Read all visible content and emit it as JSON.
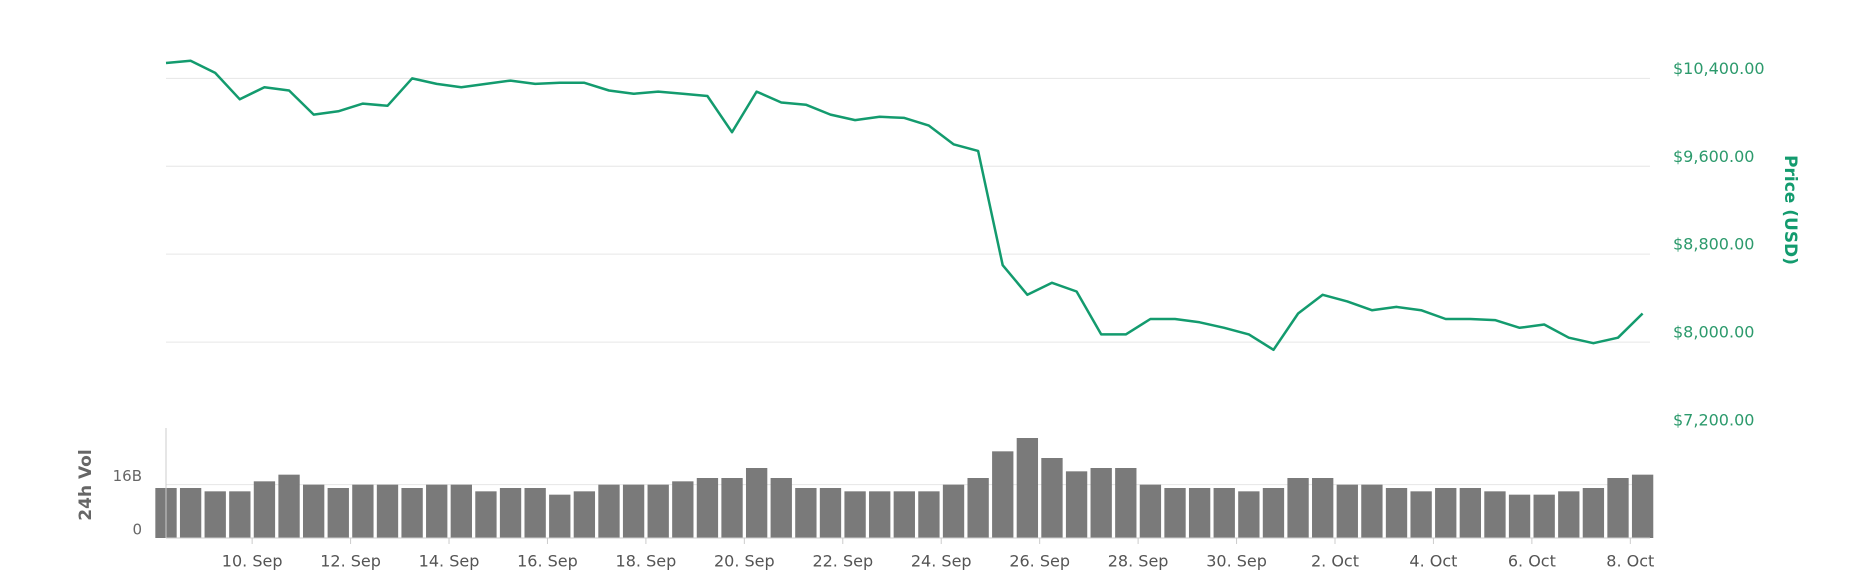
{
  "chart_data": [
    {
      "type": "line",
      "ylabel": "Price (USD)",
      "color": "#139b6e",
      "x": [
        0.25,
        0.75,
        1.25,
        1.75,
        2.25,
        2.75,
        3.25,
        3.75,
        4.25,
        4.75,
        5.25,
        5.75,
        6.25,
        6.75,
        7.25,
        7.75,
        8.25,
        8.75,
        9.25,
        9.75,
        10.25,
        10.75,
        11.25,
        11.75,
        12.25,
        12.75,
        13.25,
        13.75,
        14.25,
        14.75,
        15.25,
        15.75,
        16.25,
        16.75,
        17.25,
        17.75,
        18.25,
        18.75,
        19.25,
        19.75,
        20.25,
        20.75,
        21.25,
        21.75,
        22.25,
        22.75,
        23.25,
        23.75,
        24.25,
        24.75,
        25.25,
        25.75,
        26.25,
        26.75,
        27.25,
        27.75,
        28.25,
        28.75,
        29.25,
        29.75,
        30.25
      ],
      "values": [
        10540,
        10560,
        10450,
        10210,
        10320,
        10290,
        10070,
        10100,
        10170,
        10150,
        10400,
        10350,
        10320,
        10350,
        10380,
        10350,
        10360,
        10360,
        10290,
        10260,
        10280,
        10260,
        10240,
        9910,
        10280,
        10180,
        10160,
        10070,
        10020,
        10050,
        10040,
        9970,
        9800,
        9740,
        8700,
        8430,
        8540,
        8460,
        8070,
        8070,
        8210,
        8210,
        8180,
        8130,
        8070,
        7930,
        8260,
        8430,
        8370,
        8290,
        8320,
        8290,
        8210,
        8210,
        8200,
        8130,
        8160,
        8040,
        7990,
        8040,
        8260
      ],
      "xlim": [
        0.25,
        30.4
      ],
      "ylim": [
        7200,
        10640
      ],
      "yticks": [
        {
          "value": 10400,
          "label": "$10,400.00"
        },
        {
          "value": 9600,
          "label": "$9,600.00"
        },
        {
          "value": 8800,
          "label": "$8,800.00"
        },
        {
          "value": 8000,
          "label": "$8,000.00"
        },
        {
          "value": 7200,
          "label": "$7,200.00"
        }
      ],
      "grid": true
    },
    {
      "type": "bar",
      "ylabel": "24h Vol",
      "color": "#7a7a7a",
      "x": [
        0.25,
        0.75,
        1.25,
        1.75,
        2.25,
        2.75,
        3.25,
        3.75,
        4.25,
        4.75,
        5.25,
        5.75,
        6.25,
        6.75,
        7.25,
        7.75,
        8.25,
        8.75,
        9.25,
        9.75,
        10.25,
        10.75,
        11.25,
        11.75,
        12.25,
        12.75,
        13.25,
        13.75,
        14.25,
        14.75,
        15.25,
        15.75,
        16.25,
        16.75,
        17.25,
        17.75,
        18.25,
        18.75,
        19.25,
        19.75,
        20.25,
        20.75,
        21.25,
        21.75,
        22.25,
        22.75,
        23.25,
        23.75,
        24.25,
        24.75,
        25.25,
        25.75,
        26.25,
        26.75,
        27.25,
        27.75,
        28.25,
        28.75,
        29.25,
        29.75,
        30.25
      ],
      "values": [
        15000000000.0,
        15000000000.0,
        14000000000.0,
        14000000000.0,
        17000000000.0,
        19000000000.0,
        16000000000.0,
        15000000000.0,
        16000000000.0,
        16000000000.0,
        15000000000.0,
        16000000000.0,
        16000000000.0,
        14000000000.0,
        15000000000.0,
        15000000000.0,
        13000000000.0,
        14000000000.0,
        16000000000.0,
        16000000000.0,
        16000000000.0,
        17000000000.0,
        18000000000.0,
        18000000000.0,
        21000000000.0,
        18000000000.0,
        15000000000.0,
        15000000000.0,
        14000000000.0,
        14000000000.0,
        14000000000.0,
        14000000000.0,
        16000000000.0,
        18000000000.0,
        26000000000.0,
        30000000000.0,
        24000000000.0,
        20000000000.0,
        21000000000.0,
        21000000000.0,
        16000000000.0,
        15000000000.0,
        15000000000.0,
        15000000000.0,
        14000000000.0,
        15000000000.0,
        18000000000.0,
        18000000000.0,
        16000000000.0,
        16000000000.0,
        15000000000.0,
        14000000000.0,
        15000000000.0,
        15000000000.0,
        14000000000.0,
        13000000000.0,
        13000000000.0,
        14000000000.0,
        15000000000.0,
        18000000000.0,
        19000000000.0
      ],
      "xlim": [
        0.25,
        30.4
      ],
      "xticks": [
        {
          "value": 2,
          "label": "10. Sep"
        },
        {
          "value": 4,
          "label": "12. Sep"
        },
        {
          "value": 6,
          "label": "14. Sep"
        },
        {
          "value": 8,
          "label": "16. Sep"
        },
        {
          "value": 10,
          "label": "18. Sep"
        },
        {
          "value": 12,
          "label": "20. Sep"
        },
        {
          "value": 14,
          "label": "22. Sep"
        },
        {
          "value": 16,
          "label": "24. Sep"
        },
        {
          "value": 18,
          "label": "26. Sep"
        },
        {
          "value": 20,
          "label": "28. Sep"
        },
        {
          "value": 22,
          "label": "30. Sep"
        },
        {
          "value": 24,
          "label": "2. Oct"
        },
        {
          "value": 26,
          "label": "4. Oct"
        },
        {
          "value": 28,
          "label": "6. Oct"
        },
        {
          "value": 30,
          "label": "8. Oct"
        }
      ],
      "ylim": [
        0,
        33000000000.0
      ],
      "yticks": [
        0,
        {
          "value": 16000000000.0,
          "label": "16B"
        }
      ],
      "grid": true
    }
  ]
}
